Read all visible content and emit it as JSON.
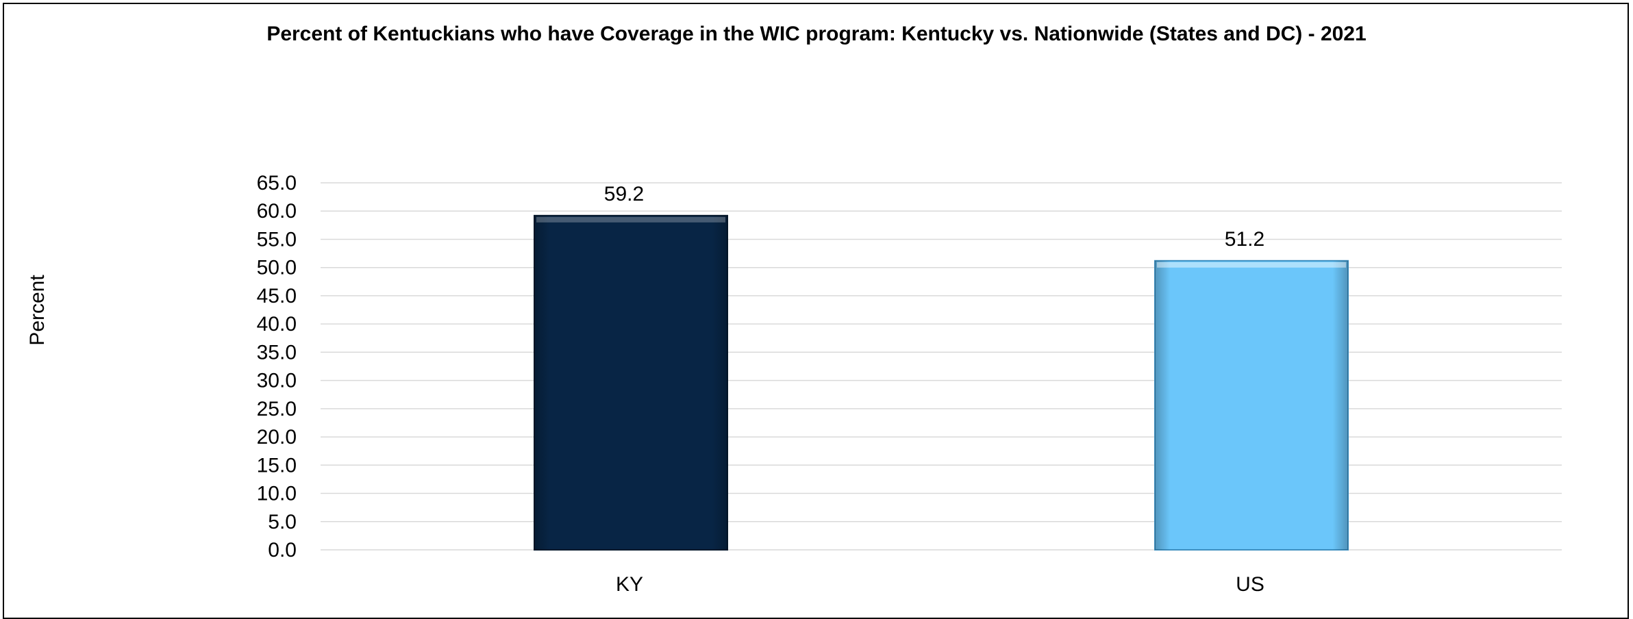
{
  "chart_data": {
    "type": "bar",
    "title": "Percent of Kentuckians who have Coverage in the WIC program: Kentucky vs. Nationwide (States and DC) - 2021",
    "xlabel": "",
    "ylabel": "Percent",
    "categories": [
      "KY",
      "US"
    ],
    "values": [
      59.2,
      51.2
    ],
    "data_labels": [
      "59.2",
      "51.2"
    ],
    "ylim": [
      0,
      65
    ],
    "yticks": [
      "0.0",
      "5.0",
      "10.0",
      "15.0",
      "20.0",
      "25.0",
      "30.0",
      "35.0",
      "40.0",
      "45.0",
      "50.0",
      "55.0",
      "60.0",
      "65.0"
    ],
    "bar_colors": [
      "#082545",
      "#6BC6FA"
    ],
    "grid": true,
    "legend": "none"
  }
}
